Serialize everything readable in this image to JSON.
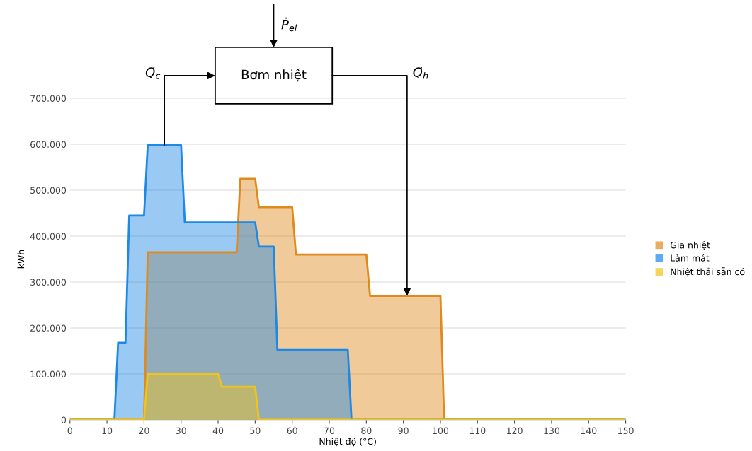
{
  "chart_data": {
    "type": "area",
    "xlabel": "Nhiệt độ (°C)",
    "ylabel": "kWh",
    "series": [
      {
        "name": "Gia nhiệt",
        "color": "#e08a1e",
        "x": [
          0,
          20,
          21,
          45,
          46,
          50,
          51,
          60,
          61,
          80,
          81,
          100,
          101,
          150
        ],
        "values": [
          0,
          0,
          365000,
          365000,
          525000,
          525000,
          463000,
          463000,
          360000,
          360000,
          270000,
          270000,
          0,
          0
        ]
      },
      {
        "name": "Làm mát",
        "color": "#1e88e5",
        "x": [
          0,
          12,
          13,
          15,
          16,
          20,
          21,
          30,
          31,
          50,
          51,
          55,
          56,
          75,
          76,
          150
        ],
        "values": [
          0,
          0,
          168000,
          168000,
          445000,
          445000,
          598000,
          598000,
          430000,
          430000,
          377000,
          377000,
          152000,
          152000,
          0,
          0
        ]
      },
      {
        "name": "Nhiệt thải sẵn có",
        "color": "#f0c419",
        "x": [
          0,
          20,
          21,
          40,
          41,
          50,
          51,
          150
        ],
        "values": [
          0,
          0,
          100000,
          100000,
          72000,
          72000,
          0,
          0
        ]
      }
    ],
    "xlim": [
      0,
      150
    ],
    "xticks": [
      0,
      10,
      20,
      30,
      40,
      50,
      60,
      70,
      80,
      90,
      100,
      110,
      120,
      130,
      140,
      150
    ],
    "ylim": [
      0,
      700000
    ],
    "yticks": [
      0,
      {
        "value": 100000,
        "label": "100.000"
      },
      {
        "value": 200000,
        "label": "200.000"
      },
      {
        "value": 300000,
        "label": "300.000"
      },
      {
        "value": 400000,
        "label": "400.000"
      },
      {
        "value": 500000,
        "label": "500.000"
      },
      {
        "value": 600000,
        "label": "600.000"
      },
      {
        "value": 700000,
        "label": "700.000"
      }
    ],
    "grid": "y",
    "legend": "right",
    "annotations": [
      "Bơm nhiệt",
      "Ṗ$_{el}$",
      {
        "text": "Q̇$_{c}$",
        "x": 25.5,
        "y": 598000
      },
      {
        "text": "Q̇$_{h}$",
        "x": 91,
        "y": 270000
      }
    ]
  }
}
